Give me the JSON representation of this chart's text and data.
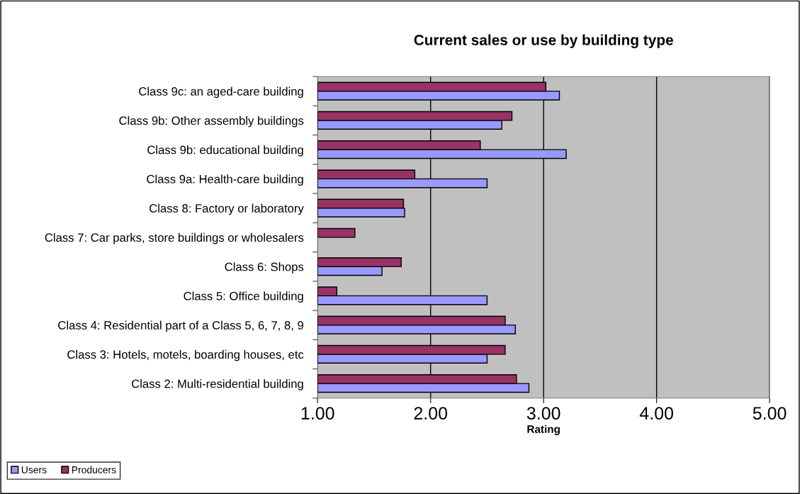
{
  "chart_data": {
    "type": "bar",
    "orientation": "horizontal",
    "title": "Current sales or use by building type",
    "xlabel": "Rating",
    "categories": [
      "Class 9c: an aged-care building",
      "Class 9b: Other assembly buildings",
      "Class 9b: educational building",
      "Class 9a: Health-care building",
      "Class 8: Factory or laboratory",
      "Class 7: Car parks, store buildings or wholesalers",
      "Class 6: Shops",
      "Class 5: Office building",
      "Class 4: Residential part of a Class 5, 6, 7, 8, 9",
      "Class 3: Hotels, motels, boarding houses, etc",
      "Class 2: Multi-residential building"
    ],
    "series": [
      {
        "name": "Users",
        "color": "#9999ff",
        "values": [
          3.14,
          2.63,
          3.2,
          2.5,
          1.77,
          null,
          1.57,
          2.5,
          2.75,
          2.5,
          2.87
        ]
      },
      {
        "name": "Producers",
        "color": "#993366",
        "values": [
          3.02,
          2.72,
          2.44,
          1.86,
          1.76,
          1.33,
          1.74,
          1.17,
          2.66,
          2.66,
          2.76
        ]
      }
    ],
    "xlim": [
      1,
      5
    ],
    "xticks": [
      {
        "value": 1,
        "label": "1.00"
      },
      {
        "value": 2,
        "label": "2.00"
      },
      {
        "value": 3,
        "label": "3.00"
      },
      {
        "value": 4,
        "label": "4.00"
      },
      {
        "value": 5,
        "label": "5.00"
      }
    ],
    "grid": "x",
    "legend": "bottom left"
  }
}
